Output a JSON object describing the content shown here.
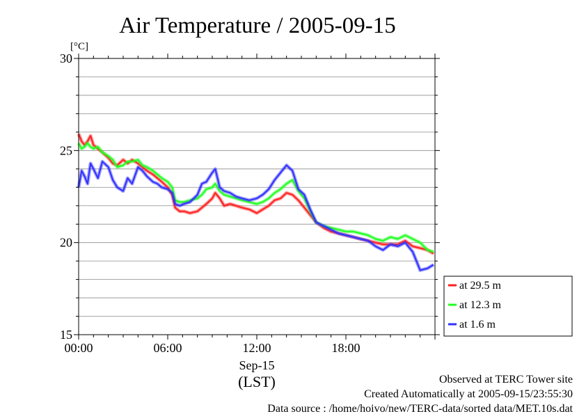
{
  "chart_data": {
    "type": "line",
    "title": "Air Temperature / 2005-09-15",
    "ylabel": "[°C]",
    "ylim": [
      15,
      30
    ],
    "yticks": [
      15,
      20,
      25,
      30
    ],
    "xlim": [
      0,
      24
    ],
    "xticks": [
      {
        "v": 0,
        "label": "00:00"
      },
      {
        "v": 6,
        "label": "06:00"
      },
      {
        "v": 12,
        "label": "12:00"
      },
      {
        "v": 18,
        "label": "18:00"
      }
    ],
    "xlabel_date": "Sep-15",
    "xlabel_unit": "(LST)",
    "grid": true,
    "legend_position": "right",
    "series": [
      {
        "name": "at 29.5 m",
        "color": "#ff2020",
        "x": [
          0,
          0.2,
          0.4,
          0.6,
          0.8,
          1.0,
          1.3,
          1.6,
          2.0,
          2.3,
          2.6,
          3.0,
          3.3,
          3.6,
          4.0,
          4.3,
          4.6,
          5.0,
          5.3,
          5.6,
          6.0,
          6.3,
          6.5,
          6.8,
          7.1,
          7.5,
          8.0,
          8.3,
          8.6,
          9.0,
          9.2,
          9.5,
          9.8,
          10.2,
          10.6,
          11.0,
          11.5,
          12.0,
          12.4,
          12.8,
          13.2,
          13.6,
          14.0,
          14.4,
          14.8,
          15.2,
          15.6,
          16.0,
          16.5,
          17.0,
          17.5,
          18.0,
          18.5,
          19.0,
          19.5,
          20.0,
          20.5,
          21.0,
          21.5,
          22.0,
          22.5,
          23.0,
          23.5,
          23.9
        ],
        "values": [
          25.9,
          25.5,
          25.3,
          25.5,
          25.8,
          25.3,
          25.1,
          24.9,
          24.6,
          24.3,
          24.2,
          24.5,
          24.3,
          24.5,
          24.3,
          24.1,
          23.9,
          23.7,
          23.5,
          23.3,
          23.0,
          22.6,
          21.9,
          21.7,
          21.7,
          21.6,
          21.7,
          21.9,
          22.1,
          22.4,
          22.7,
          22.4,
          22.0,
          22.1,
          22.0,
          21.9,
          21.8,
          21.6,
          21.8,
          22.0,
          22.3,
          22.4,
          22.7,
          22.6,
          22.3,
          21.9,
          21.5,
          21.1,
          20.8,
          20.6,
          20.5,
          20.4,
          20.3,
          20.2,
          20.1,
          20.0,
          19.9,
          19.9,
          19.9,
          20.1,
          19.8,
          19.7,
          19.6,
          19.4
        ]
      },
      {
        "name": "at 12.3 m",
        "color": "#20ff20",
        "x": [
          0,
          0.2,
          0.4,
          0.6,
          0.8,
          1.0,
          1.3,
          1.6,
          2.0,
          2.3,
          2.6,
          3.0,
          3.3,
          3.6,
          4.0,
          4.3,
          4.6,
          5.0,
          5.3,
          5.6,
          6.0,
          6.3,
          6.5,
          6.8,
          7.1,
          7.5,
          8.0,
          8.3,
          8.6,
          9.0,
          9.2,
          9.5,
          9.8,
          10.2,
          10.6,
          11.0,
          11.5,
          12.0,
          12.4,
          12.8,
          13.2,
          13.6,
          14.0,
          14.4,
          14.8,
          15.2,
          15.6,
          16.0,
          16.5,
          17.0,
          17.5,
          18.0,
          18.5,
          19.0,
          19.5,
          20.0,
          20.5,
          21.0,
          21.5,
          22.0,
          22.5,
          23.0,
          23.5,
          23.9
        ],
        "values": [
          25.4,
          25.1,
          25.2,
          25.4,
          25.2,
          25.1,
          25.2,
          24.9,
          24.7,
          24.5,
          24.1,
          24.2,
          24.4,
          24.4,
          24.5,
          24.2,
          24.1,
          23.9,
          23.7,
          23.5,
          23.3,
          23.0,
          22.3,
          22.2,
          22.2,
          22.3,
          22.4,
          22.6,
          22.9,
          23.0,
          23.2,
          22.8,
          22.6,
          22.5,
          22.4,
          22.3,
          22.2,
          22.1,
          22.2,
          22.4,
          22.7,
          22.9,
          23.2,
          23.4,
          22.8,
          22.4,
          21.7,
          21.1,
          20.9,
          20.8,
          20.7,
          20.6,
          20.6,
          20.5,
          20.4,
          20.2,
          20.1,
          20.3,
          20.2,
          20.4,
          20.2,
          20.0,
          19.6,
          19.5
        ]
      },
      {
        "name": "at 1.6 m",
        "color": "#3030ff",
        "x": [
          0,
          0.2,
          0.4,
          0.6,
          0.8,
          1.0,
          1.3,
          1.6,
          2.0,
          2.3,
          2.6,
          3.0,
          3.3,
          3.6,
          4.0,
          4.3,
          4.6,
          5.0,
          5.3,
          5.6,
          6.0,
          6.3,
          6.5,
          6.8,
          7.1,
          7.5,
          8.0,
          8.3,
          8.6,
          9.0,
          9.2,
          9.5,
          9.8,
          10.2,
          10.6,
          11.0,
          11.5,
          12.0,
          12.4,
          12.8,
          13.2,
          13.6,
          14.0,
          14.4,
          14.8,
          15.2,
          15.6,
          16.0,
          16.5,
          17.0,
          17.5,
          18.0,
          18.5,
          19.0,
          19.5,
          20.0,
          20.5,
          21.0,
          21.5,
          22.0,
          22.5,
          23.0,
          23.5,
          23.9
        ],
        "values": [
          23.0,
          23.9,
          23.6,
          23.2,
          24.3,
          24.0,
          23.5,
          24.4,
          24.1,
          23.4,
          23.0,
          22.8,
          23.5,
          23.2,
          24.1,
          23.9,
          23.6,
          23.3,
          23.2,
          23.0,
          22.9,
          22.7,
          22.1,
          22.0,
          22.1,
          22.2,
          22.6,
          23.2,
          23.3,
          23.8,
          24.0,
          23.0,
          22.8,
          22.7,
          22.5,
          22.4,
          22.3,
          22.4,
          22.6,
          22.9,
          23.4,
          23.8,
          24.2,
          23.9,
          22.9,
          22.6,
          21.8,
          21.1,
          20.9,
          20.7,
          20.5,
          20.4,
          20.3,
          20.2,
          20.1,
          19.8,
          19.6,
          19.9,
          19.8,
          20.0,
          19.5,
          18.5,
          18.6,
          18.8
        ]
      }
    ]
  },
  "footer": {
    "line1": "Observed at TERC Tower site",
    "line2": "Created Automatically at 2005-09-15/23:55:30",
    "line3": "Data source : /home/hoivo/new/TERC-data/sorted  data/MET.10s.dat"
  }
}
